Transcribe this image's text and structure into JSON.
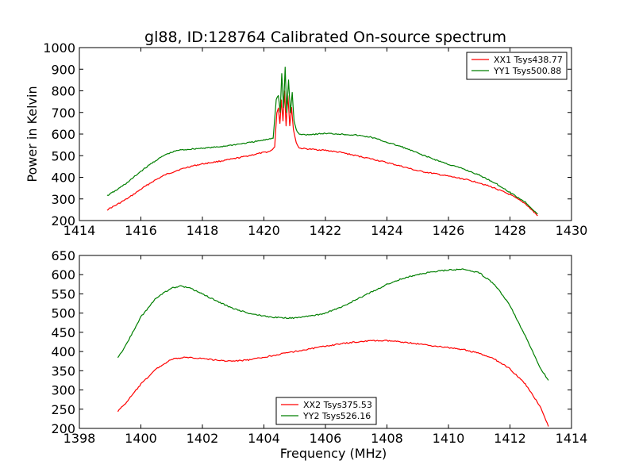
{
  "figure": {
    "title": "gl88, ID:128764 Calibrated On-source spectrum"
  },
  "colors": {
    "red": "#ff0000",
    "green": "#007f00"
  },
  "chart_data": [
    {
      "type": "line",
      "title": "gl88, ID:128764 Calibrated On-source spectrum",
      "xlabel": "",
      "ylabel": "Power in Kelvin",
      "xlim": [
        1414,
        1430
      ],
      "ylim": [
        200,
        1000
      ],
      "xticks": [
        1414,
        1416,
        1418,
        1420,
        1422,
        1424,
        1426,
        1428,
        1430
      ],
      "yticks": [
        200,
        300,
        400,
        500,
        600,
        700,
        800,
        900,
        1000
      ],
      "grid": false,
      "legend": "top-right",
      "series": [
        {
          "name": "XX1 Tsys438.77",
          "color": "#ff0000",
          "points": [
            [
              1414.9,
              250
            ],
            [
              1415.2,
              272
            ],
            [
              1415.6,
              305
            ],
            [
              1416.0,
              345
            ],
            [
              1416.4,
              382
            ],
            [
              1416.8,
              412
            ],
            [
              1417.2,
              433
            ],
            [
              1417.6,
              450
            ],
            [
              1418.0,
              462
            ],
            [
              1418.5,
              473
            ],
            [
              1419.0,
              485
            ],
            [
              1419.5,
              500
            ],
            [
              1419.9,
              512
            ],
            [
              1420.2,
              520
            ],
            [
              1420.35,
              540
            ],
            [
              1420.42,
              700
            ],
            [
              1420.47,
              720
            ],
            [
              1420.52,
              650
            ],
            [
              1420.57,
              760
            ],
            [
              1420.62,
              660
            ],
            [
              1420.67,
              800
            ],
            [
              1420.72,
              640
            ],
            [
              1420.78,
              780
            ],
            [
              1420.84,
              640
            ],
            [
              1420.9,
              720
            ],
            [
              1420.96,
              620
            ],
            [
              1421.05,
              560
            ],
            [
              1421.15,
              535
            ],
            [
              1421.5,
              530
            ],
            [
              1422.0,
              525
            ],
            [
              1422.5,
              515
            ],
            [
              1423.0,
              500
            ],
            [
              1423.5,
              485
            ],
            [
              1424.0,
              468
            ],
            [
              1424.5,
              450
            ],
            [
              1425.0,
              430
            ],
            [
              1425.5,
              418
            ],
            [
              1426.0,
              405
            ],
            [
              1426.5,
              392
            ],
            [
              1427.0,
              375
            ],
            [
              1427.5,
              350
            ],
            [
              1428.0,
              320
            ],
            [
              1428.5,
              278
            ],
            [
              1428.9,
              222
            ]
          ]
        },
        {
          "name": "YY1 Tsys500.88",
          "color": "#007f00",
          "points": [
            [
              1414.9,
              315
            ],
            [
              1415.2,
              340
            ],
            [
              1415.6,
              380
            ],
            [
              1416.0,
              428
            ],
            [
              1416.4,
              470
            ],
            [
              1416.8,
              505
            ],
            [
              1417.2,
              525
            ],
            [
              1417.6,
              530
            ],
            [
              1418.0,
              535
            ],
            [
              1418.5,
              540
            ],
            [
              1419.0,
              550
            ],
            [
              1419.5,
              560
            ],
            [
              1420.0,
              572
            ],
            [
              1420.3,
              582
            ],
            [
              1420.4,
              760
            ],
            [
              1420.47,
              780
            ],
            [
              1420.53,
              700
            ],
            [
              1420.58,
              880
            ],
            [
              1420.64,
              720
            ],
            [
              1420.69,
              910
            ],
            [
              1420.74,
              700
            ],
            [
              1420.8,
              850
            ],
            [
              1420.86,
              700
            ],
            [
              1420.92,
              790
            ],
            [
              1420.98,
              660
            ],
            [
              1421.05,
              620
            ],
            [
              1421.15,
              598
            ],
            [
              1421.5,
              598
            ],
            [
              1422.0,
              603
            ],
            [
              1422.5,
              600
            ],
            [
              1423.0,
              595
            ],
            [
              1423.5,
              585
            ],
            [
              1424.0,
              562
            ],
            [
              1424.5,
              540
            ],
            [
              1425.0,
              512
            ],
            [
              1425.5,
              485
            ],
            [
              1426.0,
              460
            ],
            [
              1426.5,
              438
            ],
            [
              1427.0,
              410
            ],
            [
              1427.5,
              375
            ],
            [
              1428.0,
              330
            ],
            [
              1428.5,
              285
            ],
            [
              1428.9,
              230
            ]
          ]
        }
      ]
    },
    {
      "type": "line",
      "title": "",
      "xlabel": "Frequency (MHz)",
      "ylabel": "",
      "xlim": [
        1398,
        1414
      ],
      "ylim": [
        200,
        650
      ],
      "xticks": [
        1398,
        1400,
        1402,
        1404,
        1406,
        1408,
        1410,
        1412,
        1414
      ],
      "yticks": [
        200,
        250,
        300,
        350,
        400,
        450,
        500,
        550,
        600,
        650
      ],
      "grid": false,
      "legend": "bottom-center",
      "series": [
        {
          "name": "XX2 Tsys375.53",
          "color": "#ff0000",
          "points": [
            [
              1399.25,
              245
            ],
            [
              1399.5,
              265
            ],
            [
              1400.0,
              315
            ],
            [
              1400.5,
              355
            ],
            [
              1401.0,
              380
            ],
            [
              1401.5,
              385
            ],
            [
              1402.0,
              382
            ],
            [
              1402.5,
              377
            ],
            [
              1403.0,
              375
            ],
            [
              1403.5,
              378
            ],
            [
              1404.0,
              385
            ],
            [
              1404.5,
              393
            ],
            [
              1405.0,
              400
            ],
            [
              1405.5,
              407
            ],
            [
              1406.0,
              414
            ],
            [
              1406.5,
              420
            ],
            [
              1407.0,
              425
            ],
            [
              1407.5,
              428
            ],
            [
              1408.0,
              428
            ],
            [
              1408.5,
              425
            ],
            [
              1409.0,
              420
            ],
            [
              1409.5,
              415
            ],
            [
              1410.0,
              410
            ],
            [
              1410.5,
              405
            ],
            [
              1411.0,
              395
            ],
            [
              1411.5,
              380
            ],
            [
              1412.0,
              355
            ],
            [
              1412.5,
              315
            ],
            [
              1413.0,
              255
            ],
            [
              1413.25,
              205
            ]
          ]
        },
        {
          "name": "YY2 Tsys526.16",
          "color": "#007f00",
          "points": [
            [
              1399.25,
              383
            ],
            [
              1399.5,
              415
            ],
            [
              1400.0,
              490
            ],
            [
              1400.5,
              540
            ],
            [
              1401.0,
              565
            ],
            [
              1401.3,
              570
            ],
            [
              1401.6,
              565
            ],
            [
              1402.0,
              550
            ],
            [
              1402.5,
              530
            ],
            [
              1403.0,
              512
            ],
            [
              1403.5,
              500
            ],
            [
              1404.0,
              492
            ],
            [
              1404.5,
              488
            ],
            [
              1405.0,
              487
            ],
            [
              1405.5,
              492
            ],
            [
              1406.0,
              500
            ],
            [
              1406.5,
              515
            ],
            [
              1407.0,
              535
            ],
            [
              1407.5,
              555
            ],
            [
              1408.0,
              575
            ],
            [
              1408.5,
              590
            ],
            [
              1409.0,
              600
            ],
            [
              1409.5,
              608
            ],
            [
              1410.0,
              612
            ],
            [
              1410.5,
              614
            ],
            [
              1411.0,
              605
            ],
            [
              1411.5,
              575
            ],
            [
              1412.0,
              520
            ],
            [
              1412.5,
              440
            ],
            [
              1413.0,
              355
            ],
            [
              1413.25,
              325
            ]
          ]
        }
      ]
    }
  ]
}
